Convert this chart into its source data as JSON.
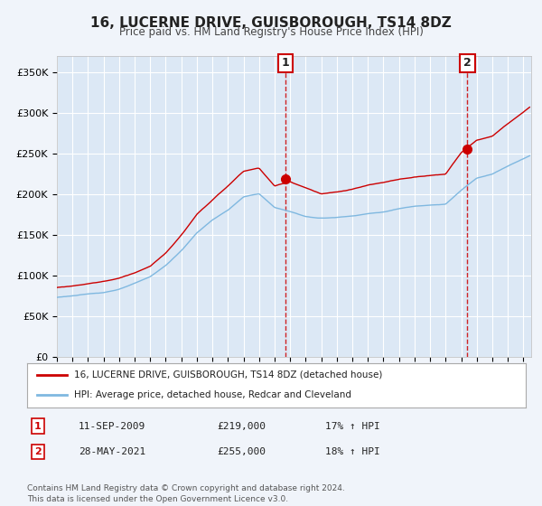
{
  "title": "16, LUCERNE DRIVE, GUISBOROUGH, TS14 8DZ",
  "subtitle": "Price paid vs. HM Land Registry's House Price Index (HPI)",
  "ylim": [
    0,
    370000
  ],
  "xlim_start": 1995.0,
  "xlim_end": 2025.5,
  "background_color": "#f0f4fa",
  "plot_bg_color": "#dce8f5",
  "grid_color": "#ffffff",
  "red_line_color": "#cc0000",
  "blue_line_color": "#7fb8e0",
  "legend_label_red": "16, LUCERNE DRIVE, GUISBOROUGH, TS14 8DZ (detached house)",
  "legend_label_blue": "HPI: Average price, detached house, Redcar and Cleveland",
  "sale1_x": 2009.7,
  "sale1_y": 219000,
  "sale1_label": "1",
  "sale1_date": "11-SEP-2009",
  "sale1_price": "£219,000",
  "sale1_hpi": "17% ↑ HPI",
  "sale2_x": 2021.4,
  "sale2_y": 255000,
  "sale2_label": "2",
  "sale2_date": "28-MAY-2021",
  "sale2_price": "£255,000",
  "sale2_hpi": "18% ↑ HPI",
  "footer": "Contains HM Land Registry data © Crown copyright and database right 2024.\nThis data is licensed under the Open Government Licence v3.0.",
  "yticks": [
    0,
    50000,
    100000,
    150000,
    200000,
    250000,
    300000,
    350000
  ],
  "ytick_labels": [
    "£0",
    "£50K",
    "£100K",
    "£150K",
    "£200K",
    "£250K",
    "£300K",
    "£350K"
  ],
  "hpi_years": [
    1995,
    1996,
    1997,
    1998,
    1999,
    2000,
    2001,
    2002,
    2003,
    2004,
    2005,
    2006,
    2007,
    2008,
    2009,
    2010,
    2011,
    2012,
    2013,
    2014,
    2015,
    2016,
    2017,
    2018,
    2019,
    2020,
    2021,
    2022,
    2023,
    2024,
    2025.4
  ],
  "hpi_vals": [
    73000,
    75000,
    77000,
    79000,
    83000,
    90000,
    98000,
    112000,
    130000,
    152000,
    168000,
    180000,
    196000,
    200000,
    183000,
    178000,
    172000,
    170000,
    171000,
    173000,
    176000,
    178000,
    182000,
    185000,
    187000,
    188000,
    205000,
    220000,
    225000,
    235000,
    248000
  ],
  "red_years": [
    1995,
    1996,
    1997,
    1998,
    1999,
    2000,
    2001,
    2002,
    2003,
    2004,
    2005,
    2006,
    2007,
    2008,
    2009,
    2010,
    2011,
    2012,
    2013,
    2014,
    2015,
    2016,
    2017,
    2018,
    2019,
    2020,
    2021,
    2022,
    2023,
    2024,
    2025.4
  ],
  "red_vals": [
    85000,
    87000,
    90000,
    93000,
    97000,
    104000,
    112000,
    128000,
    150000,
    175000,
    193000,
    210000,
    228000,
    232000,
    210000,
    215000,
    208000,
    200000,
    202000,
    205000,
    210000,
    213000,
    217000,
    220000,
    222000,
    224000,
    250000,
    265000,
    270000,
    285000,
    305000
  ]
}
